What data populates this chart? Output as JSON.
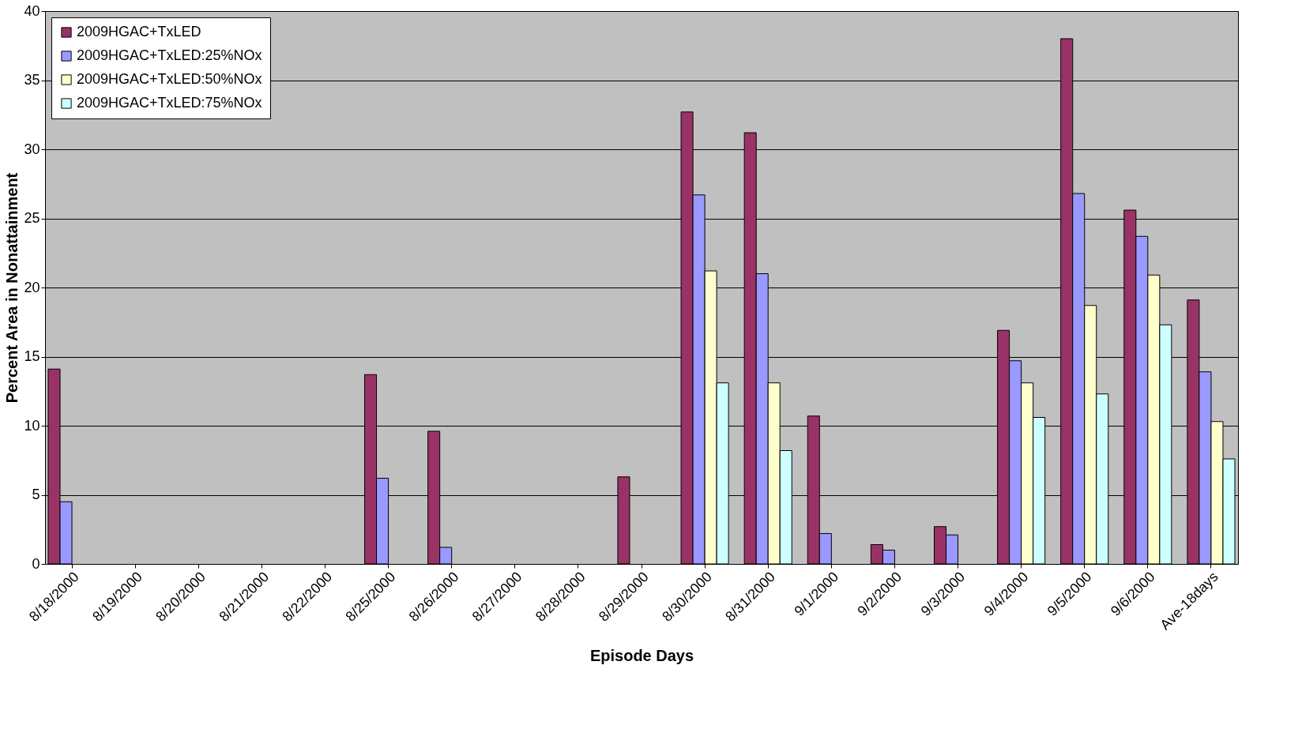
{
  "chart_data": {
    "type": "bar",
    "xlabel": "Episode Days",
    "ylabel": "Percent Area in Nonattainment",
    "categories": [
      "8/18/2000",
      "8/19/2000",
      "8/20/2000",
      "8/21/2000",
      "8/22/2000",
      "8/25/2000",
      "8/26/2000",
      "8/27/2000",
      "8/28/2000",
      "8/29/2000",
      "8/30/2000",
      "8/31/2000",
      "9/1/2000",
      "9/2/2000",
      "9/3/2000",
      "9/4/2000",
      "9/5/2000",
      "9/6/2000",
      "Ave-18days"
    ],
    "series": [
      {
        "name": "2009HGAC+TxLED",
        "color": "#993366",
        "values": [
          14.1,
          null,
          null,
          null,
          null,
          13.7,
          9.6,
          null,
          null,
          6.3,
          32.7,
          31.2,
          10.7,
          1.4,
          2.7,
          16.9,
          38.0,
          25.6,
          19.1
        ]
      },
      {
        "name": "2009HGAC+TxLED:25%NOx",
        "color": "#9999ff",
        "values": [
          4.5,
          null,
          null,
          null,
          null,
          6.2,
          1.2,
          null,
          null,
          null,
          26.7,
          21.0,
          2.2,
          1.0,
          2.1,
          14.7,
          26.8,
          23.7,
          13.9
        ]
      },
      {
        "name": "2009HGAC+TxLED:50%NOx",
        "color": "#ffffcc",
        "values": [
          null,
          null,
          null,
          null,
          null,
          null,
          null,
          null,
          null,
          null,
          21.2,
          13.1,
          null,
          null,
          null,
          13.1,
          18.7,
          20.9,
          10.3
        ]
      },
      {
        "name": "2009HGAC+TxLED:75%NOx",
        "color": "#ccffff",
        "values": [
          null,
          null,
          null,
          null,
          null,
          null,
          null,
          null,
          null,
          null,
          13.1,
          8.2,
          null,
          null,
          null,
          10.6,
          12.3,
          17.3,
          7.6
        ]
      }
    ],
    "ylim": [
      0,
      40
    ],
    "yticks": [
      0,
      5,
      10,
      15,
      20,
      25,
      30,
      35,
      40
    ],
    "grid": "y",
    "legend": "top left"
  }
}
